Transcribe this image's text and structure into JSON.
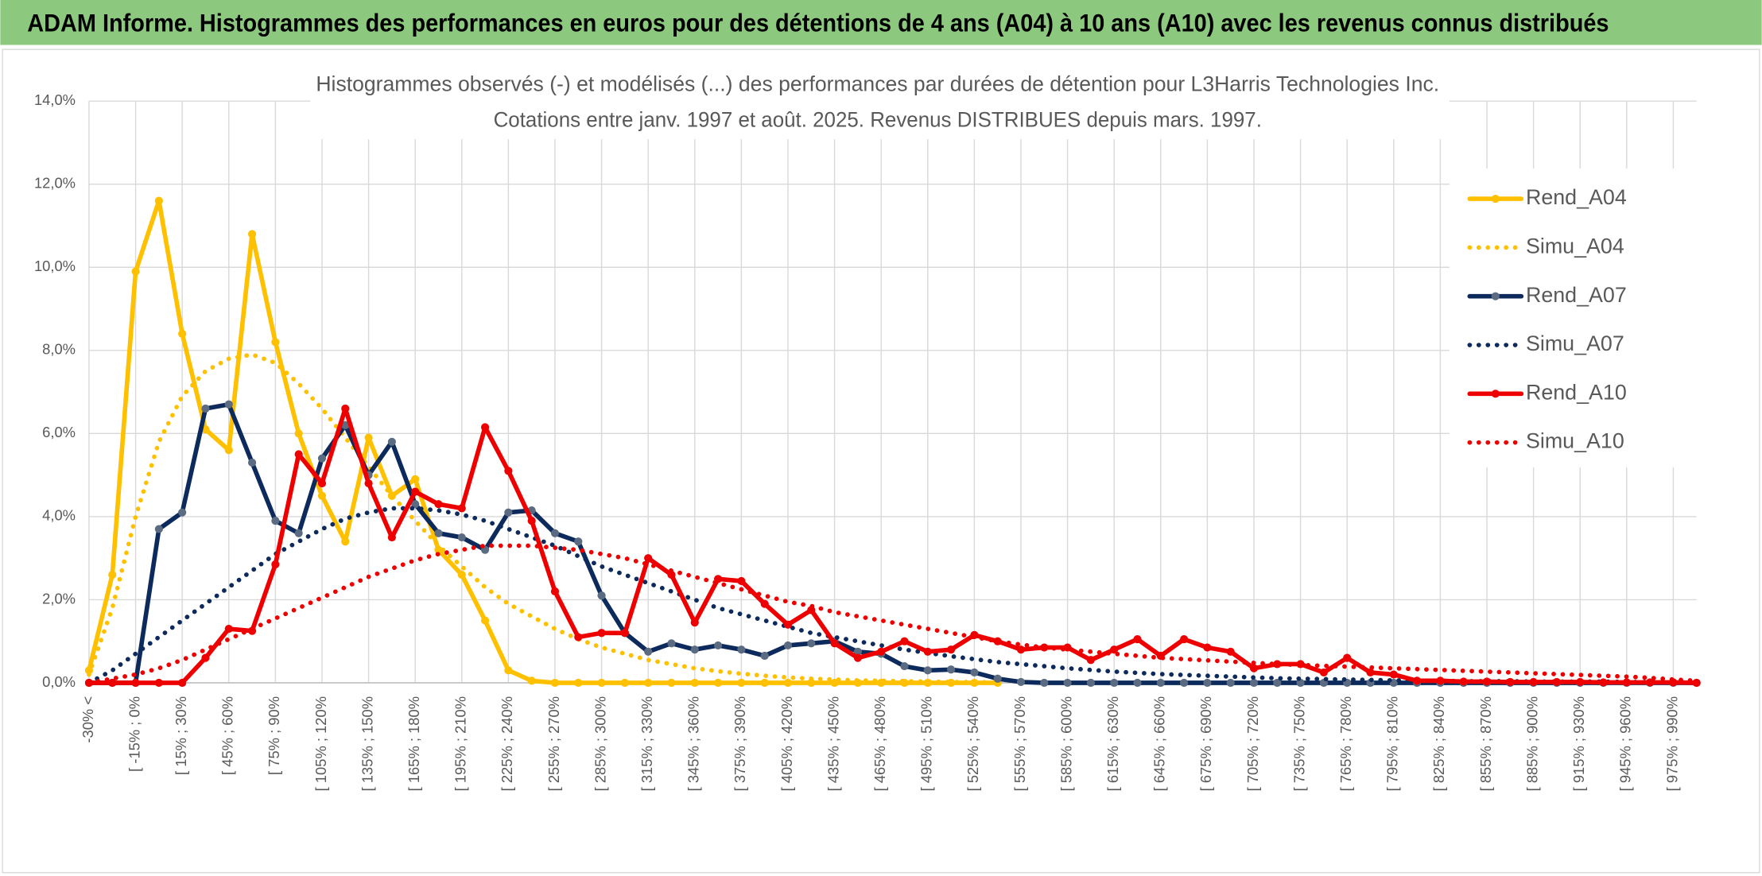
{
  "header": {
    "title": "ADAM Informe. Histogrammes des performances en euros pour des détentions de 4 ans (A04) à 10 ans (A10) avec les revenus connus distribués"
  },
  "chart_data": {
    "type": "line",
    "title": "Histogrammes observés (-) et modélisés (...) des performances par durées de détention pour L3Harris Technologies Inc.",
    "subtitle": "Cotations entre janv. 1997 et août. 2025. Revenus DISTRIBUES depuis mars. 1997.",
    "categories": [
      "-30% <",
      null,
      "[ -15% ; 0%",
      null,
      "[ 15% ; 30%",
      null,
      "[ 45% ; 60%",
      null,
      "[ 75% ; 90%",
      null,
      "[ 105% ; 120%",
      null,
      "[ 135% ; 150%",
      null,
      "[ 165% ; 180%",
      null,
      "[ 195% ; 210%",
      null,
      "[ 225% ; 240%",
      null,
      "[ 255% ; 270%",
      null,
      "[ 285% ; 300%",
      null,
      "[ 315% ; 330%",
      null,
      "[ 345% ; 360%",
      null,
      "[ 375% ; 390%",
      null,
      "[ 405% ; 420%",
      null,
      "[ 435% ; 450%",
      null,
      "[ 465% ; 480%",
      null,
      "[ 495% ; 510%",
      null,
      "[ 525% ; 540%",
      null,
      "[ 555% ; 570%",
      null,
      "[ 585% ; 600%",
      null,
      "[ 615% ; 630%",
      null,
      "[ 645% ; 660%",
      null,
      "[ 675% ; 690%",
      null,
      "[ 705% ; 720%",
      null,
      "[ 735% ; 750%",
      null,
      "[ 765% ; 780%",
      null,
      "[ 795% ; 810%",
      null,
      "[ 825% ; 840%",
      null,
      "[ 855% ; 870%",
      null,
      "[ 885% ; 900%",
      null,
      "[ 915% ; 930%",
      null,
      "[ 945% ; 960%",
      null,
      "[ 975% ; 990%",
      null
    ],
    "ylim": [
      0,
      14
    ],
    "yticks": [
      {
        "value": 0,
        "label": "0,0%"
      },
      {
        "value": 2,
        "label": "2,0%"
      },
      {
        "value": 4,
        "label": "4,0%"
      },
      {
        "value": 6,
        "label": "6,0%"
      },
      {
        "value": 8,
        "label": "8,0%"
      },
      {
        "value": 10,
        "label": "10,0%"
      },
      {
        "value": 12,
        "label": "12,0%"
      },
      {
        "value": 14,
        "label": "14,0%"
      }
    ],
    "grid": true,
    "legend": "right",
    "series": [
      {
        "name": "Rend_A04",
        "color": "#ffc000",
        "line_style": "solid",
        "markers": true,
        "marker_color": "#ffc000",
        "values": [
          0.3,
          2.6,
          9.9,
          11.6,
          8.4,
          6.1,
          5.6,
          10.8,
          8.2,
          6.0,
          4.5,
          3.4,
          5.9,
          4.5,
          4.9,
          3.2,
          2.6,
          1.5,
          0.3,
          0.05,
          0,
          0,
          0,
          0,
          0,
          0,
          0,
          0,
          0,
          0,
          0,
          0,
          0,
          0,
          0,
          0,
          0,
          0,
          0,
          0,
          null,
          null,
          null,
          null,
          null,
          null,
          null,
          null,
          null,
          null,
          null,
          null,
          null,
          null,
          null,
          null,
          null,
          null,
          null,
          null,
          null,
          null,
          null,
          null,
          null,
          null,
          null,
          null,
          null,
          null
        ]
      },
      {
        "name": "Simu_A04",
        "color": "#ffc000",
        "line_style": "dotted",
        "markers": false,
        "values": [
          0.2,
          1.8,
          4.0,
          5.8,
          6.9,
          7.5,
          7.8,
          7.9,
          7.7,
          7.2,
          6.6,
          5.9,
          5.2,
          4.5,
          3.9,
          3.3,
          2.8,
          2.3,
          1.9,
          1.6,
          1.3,
          1.05,
          0.85,
          0.7,
          0.55,
          0.45,
          0.35,
          0.28,
          0.22,
          0.17,
          0.13,
          0.1,
          0.08,
          0.06,
          0.05,
          0.04,
          0.03,
          0.02,
          0.02,
          0.01,
          null,
          null,
          null,
          null,
          null,
          null,
          null,
          null,
          null,
          null,
          null,
          null,
          null,
          null,
          null,
          null,
          null,
          null,
          null,
          null,
          null,
          null,
          null,
          null,
          null,
          null,
          null,
          null,
          null,
          null
        ]
      },
      {
        "name": "Rend_A07",
        "color": "#0d2a5c",
        "line_style": "solid",
        "markers": true,
        "marker_color": "#5a6b82",
        "values": [
          0,
          0,
          0,
          3.7,
          4.1,
          6.6,
          6.7,
          5.3,
          3.9,
          3.6,
          5.4,
          6.2,
          5.0,
          5.8,
          4.3,
          3.6,
          3.5,
          3.2,
          4.1,
          4.15,
          3.6,
          3.4,
          2.1,
          1.2,
          0.75,
          0.95,
          0.8,
          0.9,
          0.8,
          0.65,
          0.9,
          0.95,
          1.0,
          0.75,
          0.7,
          0.4,
          0.3,
          0.32,
          0.25,
          0.1,
          0.02,
          0,
          0,
          0,
          0,
          0,
          0,
          0,
          0,
          0,
          0,
          0,
          0,
          0,
          0,
          0,
          0,
          0,
          0,
          0,
          0,
          0,
          0,
          0,
          0,
          0,
          0,
          0,
          0,
          0
        ]
      },
      {
        "name": "Simu_A07",
        "color": "#0d2a5c",
        "line_style": "dotted",
        "markers": false,
        "values": [
          0,
          0.3,
          0.7,
          1.1,
          1.5,
          1.9,
          2.3,
          2.7,
          3.1,
          3.4,
          3.7,
          3.95,
          4.1,
          4.2,
          4.2,
          4.15,
          4.05,
          3.9,
          3.7,
          3.5,
          3.3,
          3.05,
          2.8,
          2.6,
          2.4,
          2.2,
          2.0,
          1.8,
          1.65,
          1.5,
          1.35,
          1.2,
          1.1,
          1.0,
          0.9,
          0.8,
          0.72,
          0.64,
          0.57,
          0.5,
          0.45,
          0.4,
          0.35,
          0.31,
          0.27,
          0.24,
          0.21,
          0.19,
          0.17,
          0.15,
          0.13,
          0.11,
          0.1,
          0.09,
          0.08,
          0.07,
          0.06,
          0.05,
          0.05,
          0.04,
          0.04,
          0.04,
          0.03,
          0.03,
          0.03,
          0.03,
          0.02,
          0.02,
          0.02,
          0.02
        ]
      },
      {
        "name": "Rend_A10",
        "color": "#ee0000",
        "line_style": "solid",
        "markers": true,
        "marker_color": "#ee0000",
        "values": [
          0,
          0,
          0,
          0,
          0,
          0.6,
          1.3,
          1.25,
          2.85,
          5.5,
          4.8,
          6.6,
          4.8,
          3.5,
          4.6,
          4.3,
          4.2,
          6.15,
          5.1,
          3.9,
          2.2,
          1.1,
          1.2,
          1.2,
          3.0,
          2.6,
          1.45,
          2.5,
          2.45,
          1.9,
          1.4,
          1.75,
          0.95,
          0.6,
          0.75,
          1.0,
          0.75,
          0.8,
          1.15,
          1.0,
          0.8,
          0.85,
          0.85,
          0.55,
          0.8,
          1.05,
          0.65,
          1.05,
          0.85,
          0.75,
          0.35,
          0.45,
          0.45,
          0.25,
          0.6,
          0.25,
          0.2,
          0.05,
          0.05,
          0.03,
          0.03,
          0.02,
          0.02,
          0.02,
          0.02,
          0.01,
          0.01,
          0.01,
          0.01,
          0
        ]
      },
      {
        "name": "Simu_A10",
        "color": "#ee0000",
        "line_style": "dotted",
        "markers": false,
        "values": [
          0,
          0.1,
          0.2,
          0.35,
          0.55,
          0.8,
          1.05,
          1.3,
          1.55,
          1.8,
          2.05,
          2.3,
          2.55,
          2.75,
          2.95,
          3.1,
          3.2,
          3.3,
          3.3,
          3.3,
          3.25,
          3.2,
          3.1,
          3.0,
          2.85,
          2.7,
          2.55,
          2.4,
          2.25,
          2.1,
          1.95,
          1.85,
          1.7,
          1.6,
          1.5,
          1.4,
          1.3,
          1.2,
          1.1,
          1.0,
          0.92,
          0.85,
          0.8,
          0.75,
          0.7,
          0.65,
          0.6,
          0.57,
          0.54,
          0.51,
          0.48,
          0.45,
          0.43,
          0.41,
          0.39,
          0.37,
          0.35,
          0.33,
          0.31,
          0.29,
          0.27,
          0.25,
          0.23,
          0.21,
          0.19,
          0.17,
          0.15,
          0.12,
          0.08,
          0.05
        ]
      }
    ]
  }
}
